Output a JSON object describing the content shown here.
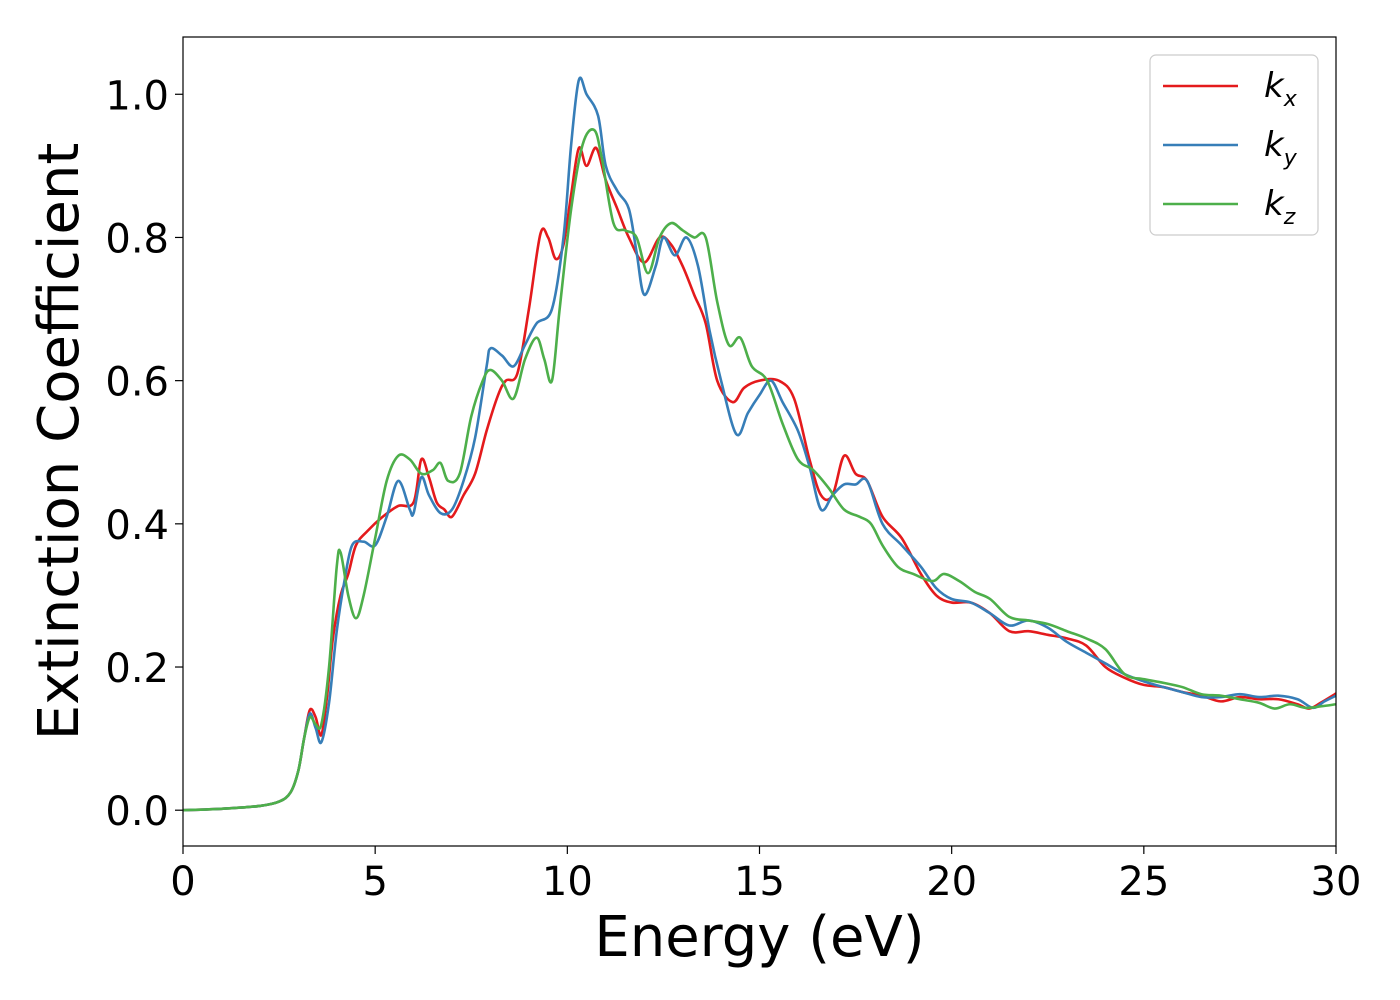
{
  "chart_data": {
    "type": "line",
    "xlabel": "Energy (eV)",
    "ylabel": "Extinction Coefficient",
    "xlim": [
      0,
      30
    ],
    "ylim": [
      -0.05,
      1.08
    ],
    "xticks": [
      0,
      5,
      10,
      15,
      20,
      25,
      30
    ],
    "xtick_labels": [
      "0",
      "5",
      "10",
      "15",
      "20",
      "25",
      "30"
    ],
    "yticks": [
      0.0,
      0.2,
      0.4,
      0.6,
      0.8,
      1.0
    ],
    "ytick_labels": [
      "0.0",
      "0.2",
      "0.4",
      "0.6",
      "0.8",
      "1.0"
    ],
    "grid": false,
    "legend_position": "top-right",
    "series": [
      {
        "name": "k_x",
        "label_base": "k",
        "label_sub": "x",
        "color": "#e41a1c",
        "points": [
          [
            0,
            0
          ],
          [
            1,
            0.002
          ],
          [
            2,
            0.006
          ],
          [
            2.5,
            0.012
          ],
          [
            2.8,
            0.025
          ],
          [
            3.0,
            0.055
          ],
          [
            3.15,
            0.1
          ],
          [
            3.3,
            0.14
          ],
          [
            3.45,
            0.13
          ],
          [
            3.6,
            0.105
          ],
          [
            3.75,
            0.16
          ],
          [
            3.9,
            0.24
          ],
          [
            4.1,
            0.3
          ],
          [
            4.3,
            0.33
          ],
          [
            4.5,
            0.37
          ],
          [
            4.8,
            0.39
          ],
          [
            5.2,
            0.41
          ],
          [
            5.6,
            0.425
          ],
          [
            6.0,
            0.43
          ],
          [
            6.2,
            0.49
          ],
          [
            6.4,
            0.465
          ],
          [
            6.6,
            0.43
          ],
          [
            6.8,
            0.42
          ],
          [
            7.0,
            0.41
          ],
          [
            7.3,
            0.44
          ],
          [
            7.6,
            0.47
          ],
          [
            7.9,
            0.53
          ],
          [
            8.2,
            0.58
          ],
          [
            8.4,
            0.6
          ],
          [
            8.7,
            0.61
          ],
          [
            9.0,
            0.7
          ],
          [
            9.3,
            0.805
          ],
          [
            9.5,
            0.8
          ],
          [
            9.7,
            0.77
          ],
          [
            9.9,
            0.79
          ],
          [
            10.1,
            0.86
          ],
          [
            10.3,
            0.925
          ],
          [
            10.5,
            0.9
          ],
          [
            10.75,
            0.925
          ],
          [
            11.0,
            0.88
          ],
          [
            11.3,
            0.84
          ],
          [
            11.6,
            0.8
          ],
          [
            12.0,
            0.765
          ],
          [
            12.4,
            0.8
          ],
          [
            12.7,
            0.79
          ],
          [
            13.0,
            0.76
          ],
          [
            13.3,
            0.72
          ],
          [
            13.6,
            0.68
          ],
          [
            13.9,
            0.6
          ],
          [
            14.3,
            0.57
          ],
          [
            14.6,
            0.59
          ],
          [
            15.0,
            0.6
          ],
          [
            15.5,
            0.6
          ],
          [
            15.9,
            0.575
          ],
          [
            16.3,
            0.49
          ],
          [
            16.6,
            0.44
          ],
          [
            16.9,
            0.44
          ],
          [
            17.2,
            0.495
          ],
          [
            17.5,
            0.47
          ],
          [
            17.8,
            0.46
          ],
          [
            18.2,
            0.41
          ],
          [
            18.7,
            0.38
          ],
          [
            19.2,
            0.33
          ],
          [
            19.6,
            0.3
          ],
          [
            20.0,
            0.29
          ],
          [
            20.5,
            0.29
          ],
          [
            21.0,
            0.275
          ],
          [
            21.5,
            0.25
          ],
          [
            22.0,
            0.25
          ],
          [
            22.5,
            0.245
          ],
          [
            23.0,
            0.24
          ],
          [
            23.5,
            0.23
          ],
          [
            24.0,
            0.2
          ],
          [
            24.5,
            0.185
          ],
          [
            25.0,
            0.175
          ],
          [
            25.5,
            0.172
          ],
          [
            26.0,
            0.165
          ],
          [
            26.5,
            0.16
          ],
          [
            27.0,
            0.152
          ],
          [
            27.5,
            0.158
          ],
          [
            28.0,
            0.155
          ],
          [
            28.5,
            0.155
          ],
          [
            29.0,
            0.148
          ],
          [
            29.3,
            0.142
          ],
          [
            29.6,
            0.15
          ],
          [
            30.0,
            0.163
          ]
        ]
      },
      {
        "name": "k_y",
        "label_base": "k",
        "label_sub": "y",
        "color": "#377eb8",
        "points": [
          [
            0,
            0
          ],
          [
            1,
            0.002
          ],
          [
            2,
            0.006
          ],
          [
            2.5,
            0.012
          ],
          [
            2.8,
            0.025
          ],
          [
            3.0,
            0.055
          ],
          [
            3.15,
            0.1
          ],
          [
            3.3,
            0.135
          ],
          [
            3.45,
            0.115
          ],
          [
            3.6,
            0.095
          ],
          [
            3.8,
            0.15
          ],
          [
            4.0,
            0.25
          ],
          [
            4.2,
            0.32
          ],
          [
            4.4,
            0.37
          ],
          [
            4.7,
            0.375
          ],
          [
            5.0,
            0.37
          ],
          [
            5.3,
            0.41
          ],
          [
            5.6,
            0.46
          ],
          [
            5.9,
            0.42
          ],
          [
            6.0,
            0.415
          ],
          [
            6.2,
            0.465
          ],
          [
            6.4,
            0.44
          ],
          [
            6.7,
            0.415
          ],
          [
            7.0,
            0.42
          ],
          [
            7.3,
            0.46
          ],
          [
            7.6,
            0.52
          ],
          [
            7.9,
            0.62
          ],
          [
            8.0,
            0.645
          ],
          [
            8.3,
            0.635
          ],
          [
            8.6,
            0.62
          ],
          [
            8.9,
            0.65
          ],
          [
            9.2,
            0.68
          ],
          [
            9.6,
            0.7
          ],
          [
            9.9,
            0.8
          ],
          [
            10.1,
            0.93
          ],
          [
            10.3,
            1.02
          ],
          [
            10.5,
            1.0
          ],
          [
            10.8,
            0.97
          ],
          [
            11.0,
            0.9
          ],
          [
            11.3,
            0.865
          ],
          [
            11.6,
            0.84
          ],
          [
            11.8,
            0.78
          ],
          [
            12.0,
            0.72
          ],
          [
            12.3,
            0.76
          ],
          [
            12.5,
            0.8
          ],
          [
            12.8,
            0.775
          ],
          [
            13.1,
            0.8
          ],
          [
            13.4,
            0.76
          ],
          [
            13.7,
            0.67
          ],
          [
            14.0,
            0.6
          ],
          [
            14.4,
            0.525
          ],
          [
            14.7,
            0.555
          ],
          [
            15.0,
            0.58
          ],
          [
            15.3,
            0.6
          ],
          [
            15.6,
            0.57
          ],
          [
            16.0,
            0.53
          ],
          [
            16.3,
            0.48
          ],
          [
            16.6,
            0.42
          ],
          [
            16.9,
            0.44
          ],
          [
            17.2,
            0.455
          ],
          [
            17.5,
            0.455
          ],
          [
            17.8,
            0.46
          ],
          [
            18.2,
            0.4
          ],
          [
            18.7,
            0.37
          ],
          [
            19.2,
            0.34
          ],
          [
            19.6,
            0.31
          ],
          [
            20.0,
            0.295
          ],
          [
            20.5,
            0.29
          ],
          [
            21.0,
            0.275
          ],
          [
            21.5,
            0.258
          ],
          [
            22.0,
            0.265
          ],
          [
            22.5,
            0.255
          ],
          [
            23.0,
            0.235
          ],
          [
            23.5,
            0.22
          ],
          [
            24.0,
            0.205
          ],
          [
            24.5,
            0.19
          ],
          [
            25.0,
            0.18
          ],
          [
            25.5,
            0.172
          ],
          [
            26.0,
            0.165
          ],
          [
            26.5,
            0.158
          ],
          [
            27.0,
            0.158
          ],
          [
            27.5,
            0.162
          ],
          [
            28.0,
            0.158
          ],
          [
            28.5,
            0.16
          ],
          [
            29.0,
            0.155
          ],
          [
            29.4,
            0.143
          ],
          [
            29.7,
            0.152
          ],
          [
            30.0,
            0.16
          ]
        ]
      },
      {
        "name": "k_z",
        "label_base": "k",
        "label_sub": "z",
        "color": "#4daf4a",
        "points": [
          [
            0,
            0
          ],
          [
            1,
            0.002
          ],
          [
            2,
            0.006
          ],
          [
            2.5,
            0.012
          ],
          [
            2.8,
            0.025
          ],
          [
            3.0,
            0.055
          ],
          [
            3.15,
            0.1
          ],
          [
            3.3,
            0.13
          ],
          [
            3.45,
            0.12
          ],
          [
            3.6,
            0.12
          ],
          [
            3.8,
            0.2
          ],
          [
            4.0,
            0.34
          ],
          [
            4.1,
            0.36
          ],
          [
            4.3,
            0.3
          ],
          [
            4.5,
            0.268
          ],
          [
            4.7,
            0.3
          ],
          [
            5.0,
            0.38
          ],
          [
            5.3,
            0.46
          ],
          [
            5.6,
            0.495
          ],
          [
            5.9,
            0.49
          ],
          [
            6.2,
            0.47
          ],
          [
            6.5,
            0.475
          ],
          [
            6.7,
            0.485
          ],
          [
            6.9,
            0.46
          ],
          [
            7.2,
            0.47
          ],
          [
            7.5,
            0.55
          ],
          [
            7.8,
            0.6
          ],
          [
            8.0,
            0.615
          ],
          [
            8.3,
            0.6
          ],
          [
            8.6,
            0.575
          ],
          [
            8.9,
            0.63
          ],
          [
            9.2,
            0.66
          ],
          [
            9.4,
            0.63
          ],
          [
            9.6,
            0.6
          ],
          [
            9.8,
            0.7
          ],
          [
            10.1,
            0.84
          ],
          [
            10.4,
            0.93
          ],
          [
            10.7,
            0.95
          ],
          [
            10.9,
            0.91
          ],
          [
            11.2,
            0.82
          ],
          [
            11.5,
            0.81
          ],
          [
            11.8,
            0.8
          ],
          [
            12.1,
            0.75
          ],
          [
            12.4,
            0.8
          ],
          [
            12.7,
            0.82
          ],
          [
            13.0,
            0.81
          ],
          [
            13.3,
            0.8
          ],
          [
            13.6,
            0.8
          ],
          [
            13.9,
            0.71
          ],
          [
            14.2,
            0.65
          ],
          [
            14.5,
            0.66
          ],
          [
            14.8,
            0.62
          ],
          [
            15.2,
            0.6
          ],
          [
            15.6,
            0.54
          ],
          [
            16.0,
            0.49
          ],
          [
            16.4,
            0.475
          ],
          [
            16.8,
            0.45
          ],
          [
            17.2,
            0.42
          ],
          [
            17.6,
            0.41
          ],
          [
            17.9,
            0.4
          ],
          [
            18.2,
            0.37
          ],
          [
            18.6,
            0.34
          ],
          [
            19.0,
            0.33
          ],
          [
            19.5,
            0.32
          ],
          [
            19.8,
            0.33
          ],
          [
            20.2,
            0.32
          ],
          [
            20.6,
            0.305
          ],
          [
            21.0,
            0.295
          ],
          [
            21.5,
            0.27
          ],
          [
            22.0,
            0.265
          ],
          [
            22.5,
            0.26
          ],
          [
            23.0,
            0.25
          ],
          [
            23.5,
            0.24
          ],
          [
            24.0,
            0.225
          ],
          [
            24.5,
            0.19
          ],
          [
            25.0,
            0.183
          ],
          [
            25.5,
            0.178
          ],
          [
            26.0,
            0.172
          ],
          [
            26.5,
            0.162
          ],
          [
            27.0,
            0.16
          ],
          [
            27.5,
            0.155
          ],
          [
            28.0,
            0.15
          ],
          [
            28.4,
            0.142
          ],
          [
            28.8,
            0.148
          ],
          [
            29.2,
            0.143
          ],
          [
            29.6,
            0.145
          ],
          [
            30.0,
            0.148
          ]
        ]
      }
    ]
  }
}
